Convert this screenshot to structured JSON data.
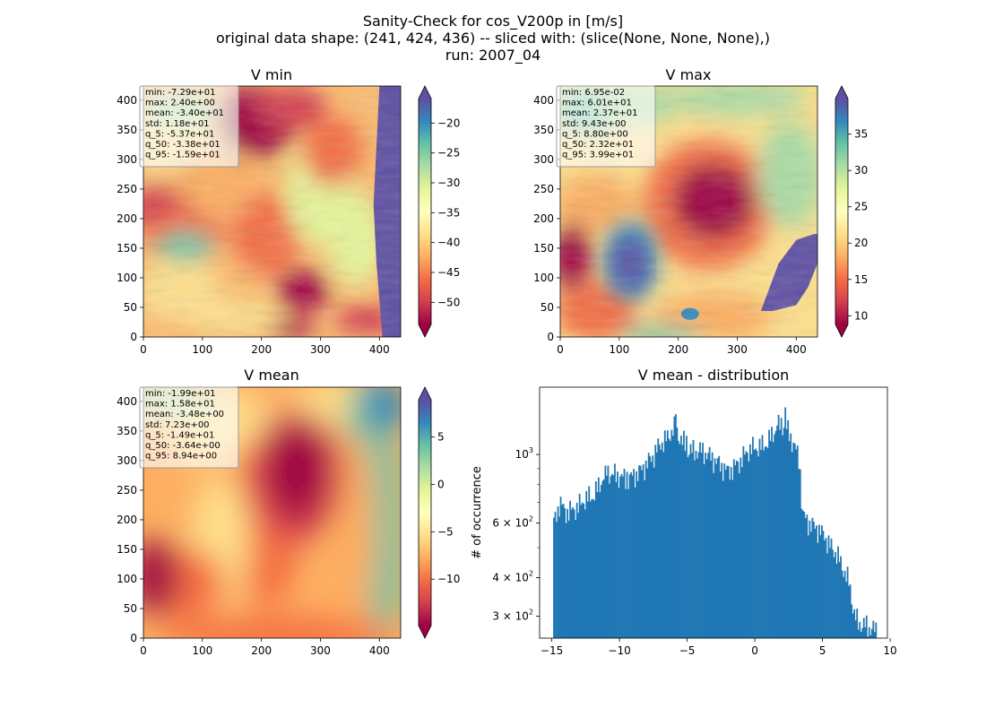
{
  "figure": {
    "title_lines": [
      "Sanity-Check for cos_V200p in [m/s]",
      "original data shape: (241, 424, 436) -- sliced with: (slice(None, None, None),)",
      "run: 2007_04"
    ]
  },
  "colors": {
    "cmap": [
      "#9e0142",
      "#d53e4f",
      "#f46d43",
      "#fdae61",
      "#fee08b",
      "#ffffbf",
      "#e6f598",
      "#abdda4",
      "#66c2a5",
      "#3288bd",
      "#5e4fa2"
    ],
    "hist_bar": "#1f77b4"
  },
  "chart_data": [
    {
      "type": "heatmap",
      "title": "V min",
      "x_ticks": [
        0,
        100,
        200,
        300,
        400
      ],
      "y_ticks": [
        0,
        50,
        100,
        150,
        200,
        250,
        300,
        350,
        400
      ],
      "xlim": [
        0,
        436
      ],
      "ylim": [
        0,
        424
      ],
      "colorbar": {
        "range": [
          -53.7,
          -15.9
        ],
        "ticks": [
          -50,
          -45,
          -40,
          -35,
          -30,
          -25,
          -20
        ],
        "extend": "both"
      },
      "stats": [
        "min: -7.29e+01",
        "max: 2.40e+00",
        "mean: -3.40e+01",
        "std: 1.18e+01",
        "q_5: -5.37e+01",
        "q_50: -3.38e+01",
        "q_95: -1.59e+01"
      ]
    },
    {
      "type": "heatmap",
      "title": "V max",
      "x_ticks": [
        0,
        100,
        200,
        300,
        400
      ],
      "y_ticks": [
        0,
        50,
        100,
        150,
        200,
        250,
        300,
        350,
        400
      ],
      "xlim": [
        0,
        436
      ],
      "ylim": [
        0,
        424
      ],
      "colorbar": {
        "range": [
          8.8,
          39.9
        ],
        "ticks": [
          10,
          15,
          20,
          25,
          30,
          35
        ],
        "extend": "both"
      },
      "stats": [
        "min: 6.95e-02",
        "max: 6.01e+01",
        "mean: 2.37e+01",
        "std: 9.43e+00",
        "q_5: 8.80e+00",
        "q_50: 2.32e+01",
        "q_95: 3.99e+01"
      ]
    },
    {
      "type": "heatmap",
      "title": "V mean",
      "x_ticks": [
        0,
        100,
        200,
        300,
        400
      ],
      "y_ticks": [
        0,
        50,
        100,
        150,
        200,
        250,
        300,
        350,
        400
      ],
      "xlim": [
        0,
        436
      ],
      "ylim": [
        0,
        424
      ],
      "colorbar": {
        "range": [
          -14.9,
          8.94
        ],
        "ticks": [
          -10,
          -5,
          0,
          5
        ],
        "extend": "both"
      },
      "stats": [
        "min: -1.99e+01",
        "max: 1.58e+01",
        "mean: -3.48e+00",
        "std: 7.23e+00",
        "q_5: -1.49e+01",
        "q_50: -3.64e+00",
        "q_95: 8.94e+00"
      ]
    },
    {
      "type": "bar",
      "title": "V mean - distribution",
      "ylabel": "# of occurrence",
      "yscale": "log",
      "xlim": [
        -15.9,
        9.8
      ],
      "ylim": [
        255,
        1650
      ],
      "x_ticks": [
        -15,
        -10,
        -5,
        0,
        5,
        10
      ],
      "x_tick_labels": [
        "−15",
        "−10",
        "−5",
        "0",
        "5",
        "10"
      ],
      "y_ticks": [
        {
          "value": 300,
          "base": "3 × 10",
          "exp": "2"
        },
        {
          "value": 400,
          "base": "4 × 10",
          "exp": "2"
        },
        {
          "value": 600,
          "base": "6 × 10",
          "exp": "2"
        },
        {
          "value": 1000,
          "base": "10",
          "exp": "3"
        }
      ],
      "bin_start": -14.9,
      "bin_width": 0.1,
      "knots": [
        [
          -14.9,
          590
        ],
        [
          -14.4,
          700
        ],
        [
          -14.0,
          650
        ],
        [
          -13.5,
          660
        ],
        [
          -13.0,
          680
        ],
        [
          -12.5,
          720
        ],
        [
          -12.0,
          730
        ],
        [
          -11.5,
          790
        ],
        [
          -11.0,
          880
        ],
        [
          -10.5,
          860
        ],
        [
          -10.0,
          850
        ],
        [
          -9.5,
          830
        ],
        [
          -9.0,
          850
        ],
        [
          -8.5,
          880
        ],
        [
          -8.0,
          930
        ],
        [
          -7.5,
          990
        ],
        [
          -7.0,
          1080
        ],
        [
          -6.5,
          1120
        ],
        [
          -6.0,
          1220
        ],
        [
          -5.5,
          1130
        ],
        [
          -5.0,
          1040
        ],
        [
          -4.5,
          1020
        ],
        [
          -4.0,
          1030
        ],
        [
          -3.5,
          1000
        ],
        [
          -3.0,
          960
        ],
        [
          -2.5,
          920
        ],
        [
          -2.0,
          880
        ],
        [
          -1.5,
          910
        ],
        [
          -1.0,
          960
        ],
        [
          -0.5,
          1030
        ],
        [
          0.0,
          1050
        ],
        [
          0.5,
          1060
        ],
        [
          1.0,
          1100
        ],
        [
          1.5,
          1200
        ],
        [
          2.0,
          1260
        ],
        [
          2.5,
          1180
        ],
        [
          3.0,
          1040
        ],
        [
          3.3,
          960
        ],
        [
          3.5,
          640
        ],
        [
          4.0,
          600
        ],
        [
          4.5,
          580
        ],
        [
          5.0,
          560
        ],
        [
          5.5,
          510
        ],
        [
          6.0,
          480
        ],
        [
          6.5,
          430
        ],
        [
          7.0,
          380
        ],
        [
          7.3,
          310
        ],
        [
          7.6,
          285
        ],
        [
          8.0,
          282
        ],
        [
          8.5,
          275
        ],
        [
          8.94,
          270
        ]
      ],
      "spikes": [
        {
          "x": -14.4,
          "value": 730
        },
        {
          "x": -11.1,
          "value": 920
        },
        {
          "x": -9.5,
          "value": 880
        },
        {
          "x": -5.9,
          "value": 1350
        },
        {
          "x": -5.1,
          "value": 1150
        },
        {
          "x": 2.2,
          "value": 1420
        },
        {
          "x": 1.6,
          "value": 1240
        },
        {
          "x": 4.9,
          "value": 590
        }
      ]
    }
  ]
}
